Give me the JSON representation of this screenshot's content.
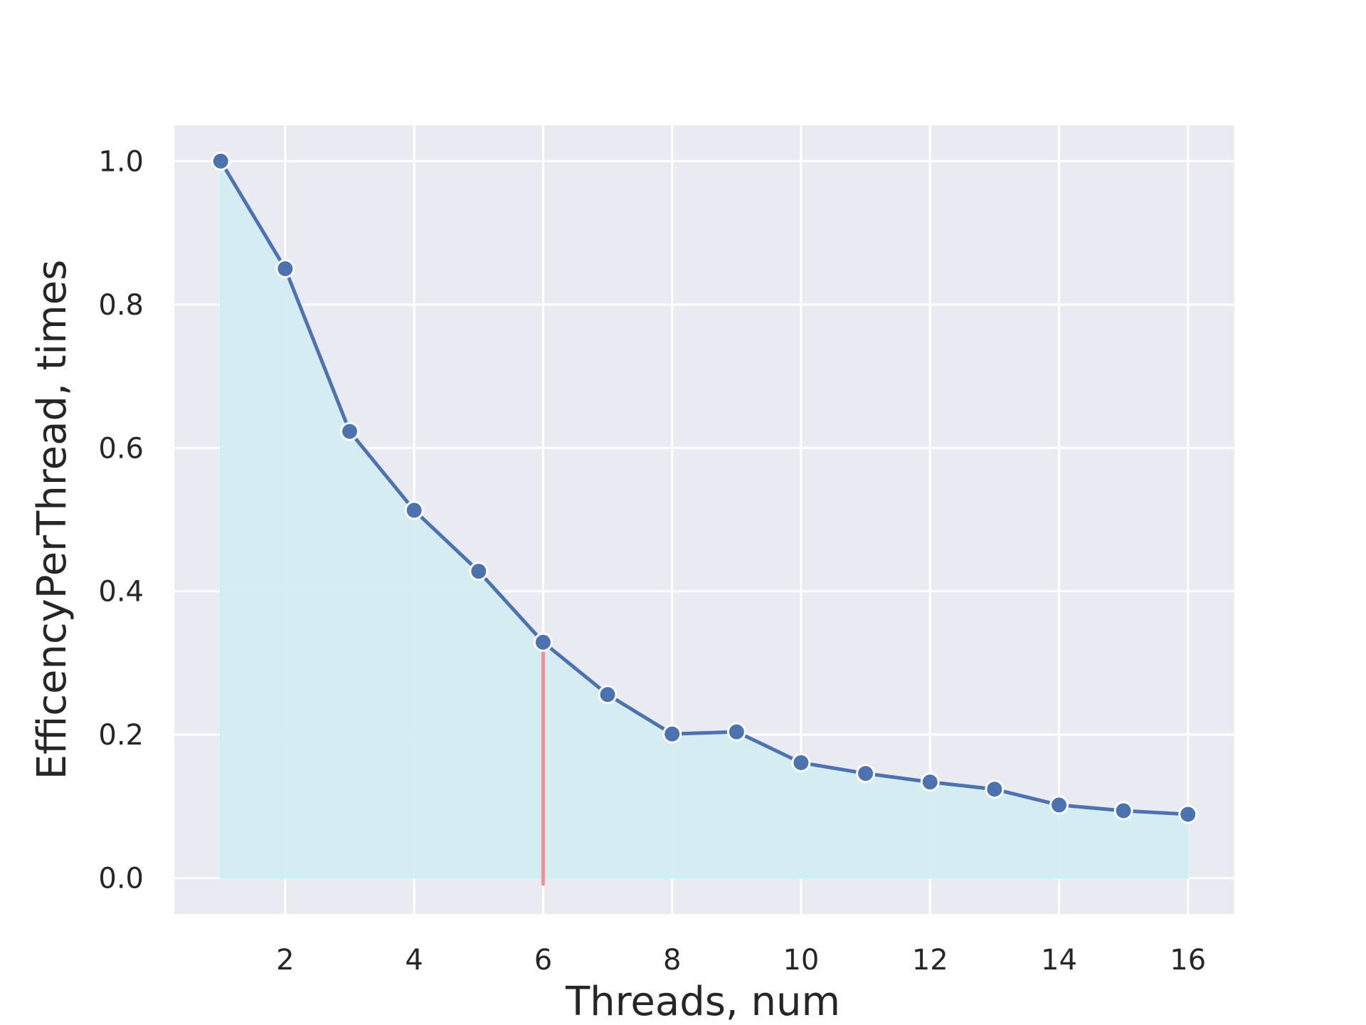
{
  "chart_data": {
    "type": "line",
    "title": "",
    "xlabel": "Threads, num",
    "ylabel": "EfficencyPerThread, times",
    "xlim": [
      0.28,
      16.72
    ],
    "ylim": [
      -0.05,
      1.05
    ],
    "x_ticks": [
      2,
      4,
      6,
      8,
      10,
      12,
      14,
      16
    ],
    "y_ticks": [
      0.0,
      0.2,
      0.4,
      0.6,
      0.8,
      1.0
    ],
    "x_tick_labels": [
      "2",
      "4",
      "6",
      "8",
      "10",
      "12",
      "14",
      "16"
    ],
    "y_tick_labels": [
      "0.0",
      "0.2",
      "0.4",
      "0.6",
      "0.8",
      "1.0"
    ],
    "grid": true,
    "area_fill": true,
    "series": [
      {
        "x": [
          1,
          2,
          3,
          4,
          5,
          6,
          7,
          8,
          9,
          10,
          11,
          12,
          13,
          14,
          15,
          16
        ],
        "values": [
          1.0,
          0.85,
          0.623,
          0.513,
          0.428,
          0.329,
          0.256,
          0.201,
          0.204,
          0.161,
          0.146,
          0.134,
          0.124,
          0.102,
          0.094,
          0.089
        ],
        "color": "#4c72b0"
      }
    ],
    "vertical_marker": {
      "x": 6,
      "y_from": -0.008,
      "y_to": 0.315,
      "color": "#f08f8f"
    },
    "colors": {
      "plot_background": "#eaeaf2",
      "grid": "#ffffff",
      "fill": "#d4ecf2",
      "fill_edge": "#bff3f5"
    }
  }
}
